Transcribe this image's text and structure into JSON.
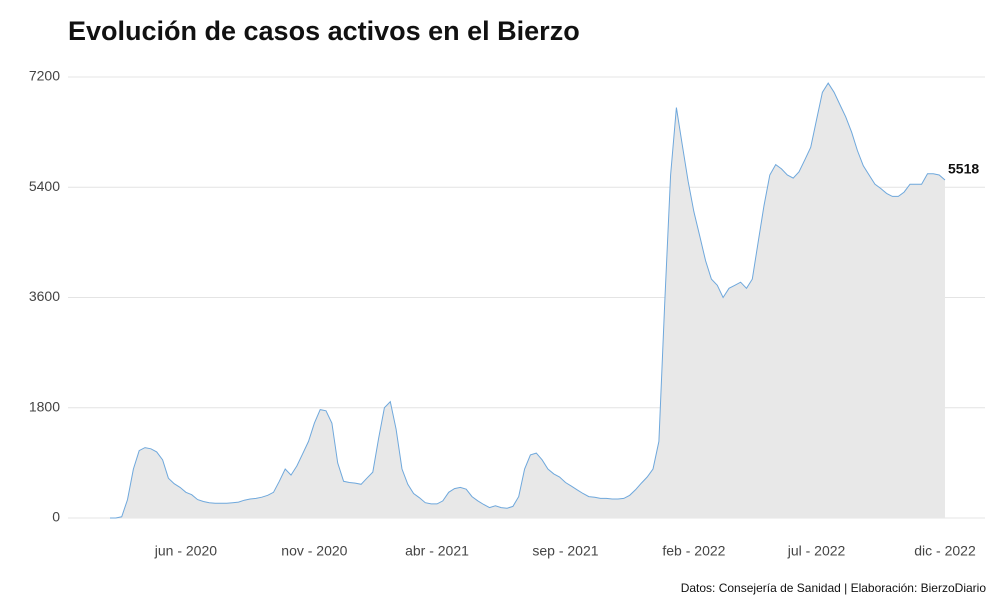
{
  "chart_data": {
    "type": "area",
    "title": "Evolución de casos activos en el Bierzo",
    "source": "Datos: Consejería de Sanidad | Elaboración: BierzoDiario",
    "categories": [
      null,
      null,
      null,
      null,
      null,
      null,
      null,
      null,
      null,
      null,
      null,
      null,
      null,
      "jun - 2020",
      null,
      null,
      null,
      null,
      null,
      null,
      null,
      null,
      null,
      null,
      null,
      null,
      null,
      null,
      null,
      null,
      null,
      null,
      null,
      null,
      null,
      "nov - 2020",
      null,
      null,
      null,
      null,
      null,
      null,
      null,
      null,
      null,
      null,
      null,
      null,
      null,
      null,
      null,
      null,
      null,
      null,
      null,
      null,
      "abr - 2021",
      null,
      null,
      null,
      null,
      null,
      null,
      null,
      null,
      null,
      null,
      null,
      null,
      null,
      null,
      null,
      null,
      null,
      null,
      null,
      null,
      null,
      "sep - 2021",
      null,
      null,
      null,
      null,
      null,
      null,
      null,
      null,
      null,
      null,
      null,
      null,
      null,
      null,
      null,
      null,
      null,
      null,
      null,
      null,
      null,
      "feb - 2022",
      null,
      null,
      null,
      null,
      null,
      null,
      null,
      null,
      null,
      null,
      null,
      null,
      null,
      null,
      null,
      null,
      null,
      null,
      null,
      null,
      "jul - 2022",
      null,
      null,
      null,
      null,
      null,
      null,
      null,
      null,
      null,
      null,
      null,
      null,
      null,
      null,
      null,
      null,
      null,
      null,
      null,
      null,
      null,
      "dic - 2022"
    ],
    "values": [
      0,
      0,
      20,
      300,
      800,
      1100,
      1150,
      1130,
      1080,
      950,
      650,
      560,
      500,
      420,
      380,
      300,
      270,
      250,
      240,
      240,
      240,
      250,
      260,
      290,
      310,
      320,
      340,
      370,
      420,
      600,
      800,
      700,
      850,
      1050,
      1250,
      1550,
      1770,
      1750,
      1550,
      900,
      600,
      580,
      570,
      550,
      650,
      750,
      1300,
      1800,
      1900,
      1450,
      800,
      550,
      400,
      330,
      250,
      230,
      230,
      280,
      420,
      480,
      500,
      470,
      350,
      280,
      220,
      170,
      200,
      170,
      160,
      190,
      350,
      800,
      1030,
      1060,
      950,
      800,
      720,
      670,
      580,
      520,
      460,
      400,
      350,
      340,
      320,
      320,
      310,
      310,
      320,
      370,
      460,
      570,
      670,
      800,
      1250,
      3500,
      5600,
      6700,
      6100,
      5500,
      5000,
      4600,
      4200,
      3900,
      3800,
      3600,
      3750,
      3800,
      3850,
      3750,
      3900,
      4500,
      5100,
      5600,
      5770,
      5700,
      5600,
      5550,
      5650,
      5850,
      6050,
      6500,
      6950,
      7100,
      6950,
      6750,
      6550,
      6300,
      6000,
      5750,
      5600,
      5450,
      5380,
      5300,
      5250,
      5250,
      5320,
      5450,
      5450,
      5450,
      5620,
      5620,
      5600,
      5518
    ],
    "color": "#6fa8dc",
    "fill_color": "#e8e8e8",
    "ylim": [
      0,
      7200
    ],
    "yticks": [
      0,
      1800,
      3600,
      5400,
      7200
    ],
    "grid": true
  }
}
